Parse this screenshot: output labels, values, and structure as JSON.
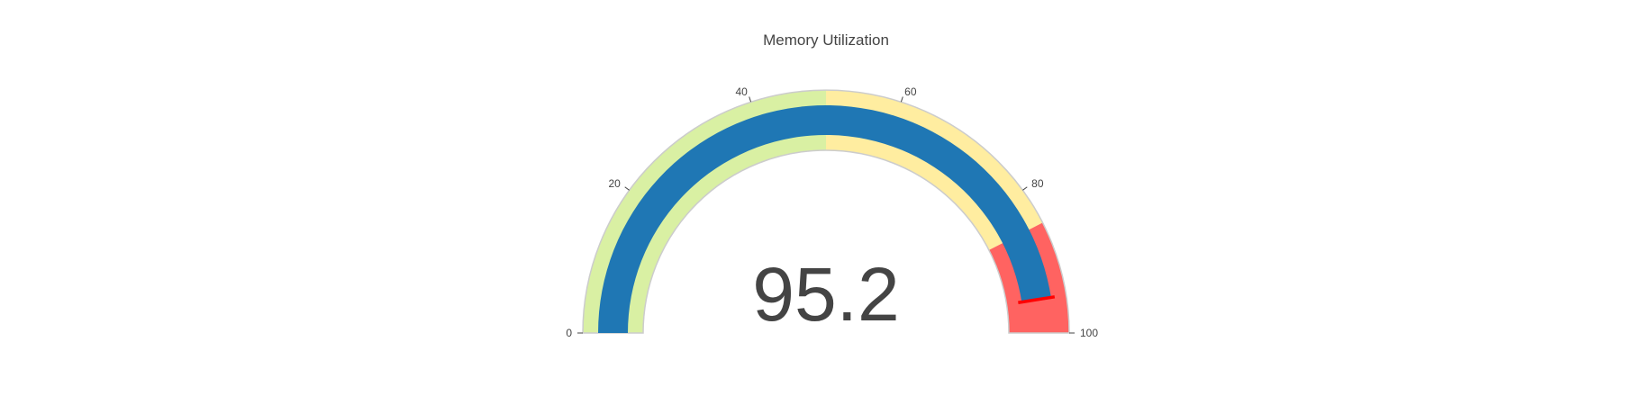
{
  "chart_data": {
    "type": "gauge",
    "title": "Memory Utilization",
    "value": 95.2,
    "value_label": "95.2",
    "threshold": 95,
    "range": [
      0,
      100
    ],
    "ticks": [
      {
        "value": 0,
        "label": "0"
      },
      {
        "value": 20,
        "label": "20"
      },
      {
        "value": 40,
        "label": "40"
      },
      {
        "value": 60,
        "label": "60"
      },
      {
        "value": 80,
        "label": "80"
      },
      {
        "value": 100,
        "label": "100"
      }
    ],
    "steps": [
      {
        "range": [
          0,
          50
        ],
        "color": "#d9f0a3"
      },
      {
        "range": [
          50,
          85
        ],
        "color": "#ffeda0"
      },
      {
        "range": [
          85,
          100
        ],
        "color": "#ff6361"
      }
    ],
    "bar_color": "#1f77b4",
    "threshold_color": "#ff0000",
    "border_color": "#cccccc"
  }
}
